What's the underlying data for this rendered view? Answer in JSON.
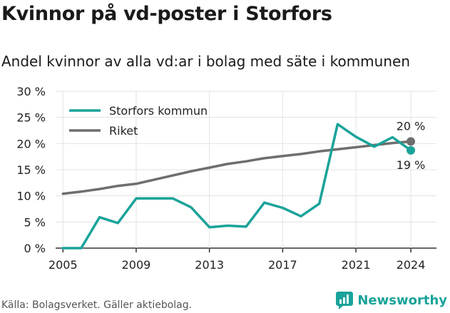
{
  "title": "Kvinnor på vd-poster i Storfors",
  "subtitle": "Andel kvinnor av alla vd:ar i bolag med säte i kommunen",
  "source": "Källa: Bolagsverket. Gäller aktiebolag.",
  "brand": "Newsworthy",
  "colors": {
    "storfors": "#1aa39a",
    "riket": "#6e6e6e",
    "grid": "#e3e3e3",
    "axis": "#333333"
  },
  "chart_data": {
    "type": "line",
    "title": "Kvinnor på vd-poster i Storfors",
    "subtitle": "Andel kvinnor av alla vd:ar i bolag med säte i kommunen",
    "x": [
      2005,
      2006,
      2007,
      2008,
      2009,
      2010,
      2011,
      2012,
      2013,
      2014,
      2015,
      2016,
      2017,
      2018,
      2019,
      2020,
      2021,
      2022,
      2023,
      2024
    ],
    "xticks": [
      2005,
      2009,
      2013,
      2017,
      2021,
      2024
    ],
    "ylim": [
      0,
      30
    ],
    "yticks": [
      0,
      5,
      10,
      15,
      20,
      25,
      30
    ],
    "ytick_labels": [
      "0 %",
      "5 %",
      "10 %",
      "15 %",
      "20 %",
      "25 %",
      "30 %"
    ],
    "grid": true,
    "legend_position": "top-left",
    "series": [
      {
        "name": "Storfors kommun",
        "color": "#1aa39a",
        "values": [
          0,
          0,
          5.9,
          4.8,
          9.5,
          9.5,
          9.5,
          7.8,
          4.0,
          4.3,
          4.1,
          8.7,
          7.7,
          6.1,
          8.5,
          23.7,
          21.3,
          19.4,
          21.2,
          18.7
        ],
        "end_label": "19 %"
      },
      {
        "name": "Riket",
        "color": "#6e6e6e",
        "values": [
          10.4,
          10.8,
          11.3,
          11.9,
          12.3,
          13.1,
          13.9,
          14.7,
          15.4,
          16.1,
          16.6,
          17.2,
          17.6,
          18.0,
          18.5,
          18.9,
          19.3,
          19.7,
          20.1,
          20.4
        ],
        "end_label": "20 %"
      }
    ]
  }
}
